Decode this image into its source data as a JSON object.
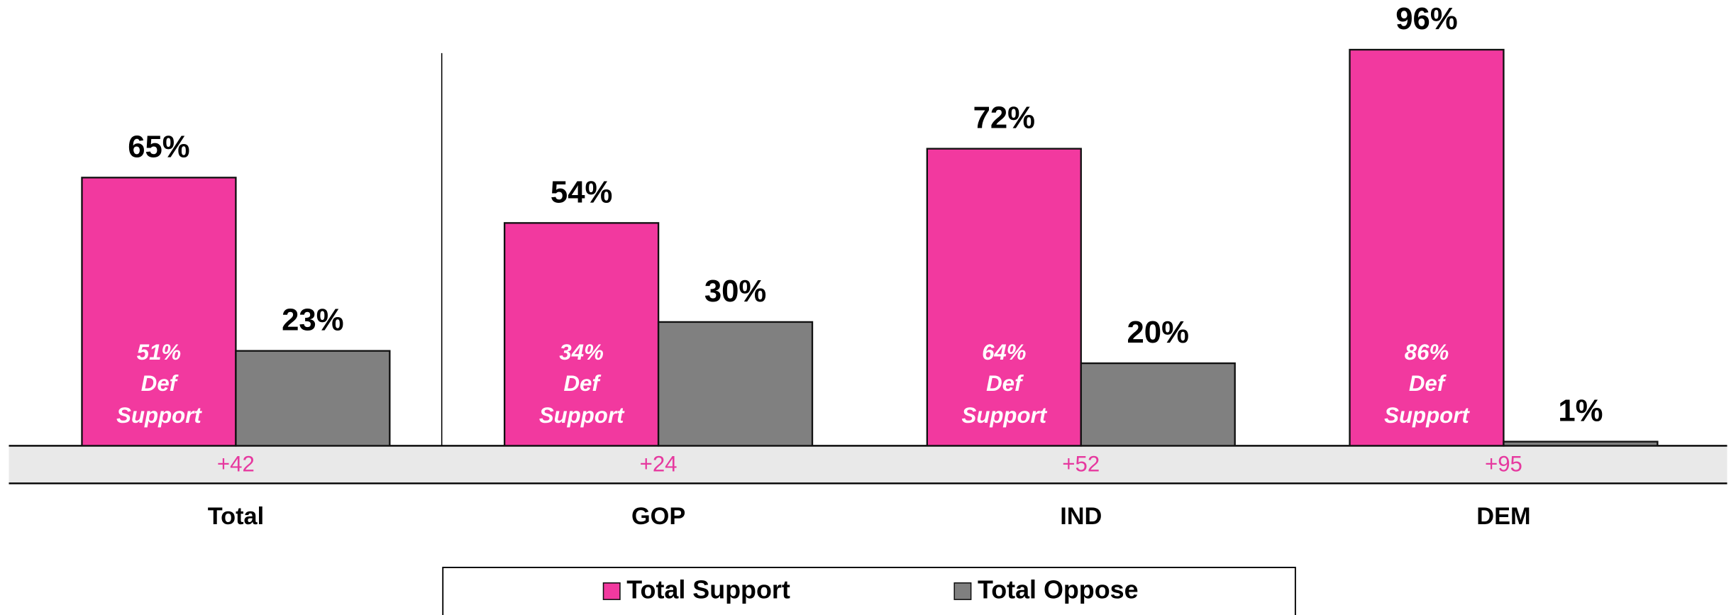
{
  "chart_data": {
    "type": "bar",
    "categories": [
      "Total",
      "GOP",
      "IND",
      "DEM"
    ],
    "series": [
      {
        "name": "Total Support",
        "color": "#f2399f",
        "values": [
          65,
          54,
          72,
          96
        ],
        "value_labels": [
          "65%",
          "54%",
          "72%",
          "96%"
        ]
      },
      {
        "name": "Total Oppose",
        "color": "#808080",
        "values": [
          23,
          30,
          20,
          1
        ],
        "value_labels": [
          "23%",
          "30%",
          "20%",
          "1%"
        ]
      }
    ],
    "ylim": [
      0,
      100
    ],
    "def_support": {
      "values": [
        51,
        34,
        64,
        86
      ],
      "value_labels": [
        "51%",
        "34%",
        "64%",
        "86%"
      ],
      "label": [
        "Def",
        "Support"
      ]
    },
    "margins": [
      "+42",
      "+24",
      "+52",
      "+95"
    ],
    "legend": "bottom"
  }
}
